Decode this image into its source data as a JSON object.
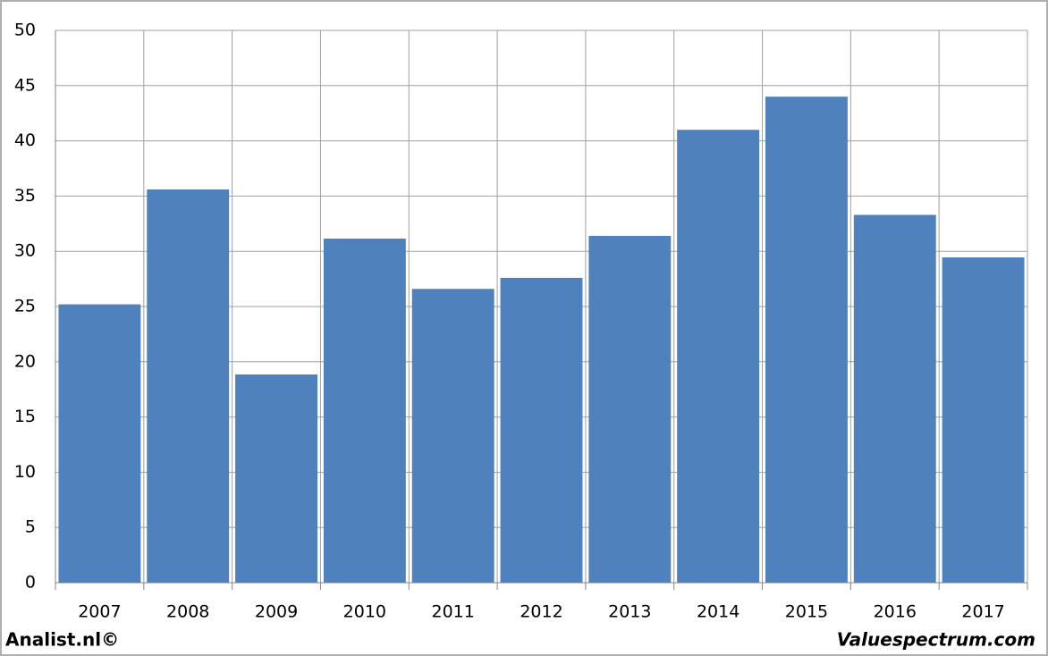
{
  "chart_data": {
    "type": "bar",
    "categories": [
      "2007",
      "2008",
      "2009",
      "2010",
      "2011",
      "2012",
      "2013",
      "2014",
      "2015",
      "2016",
      "2017"
    ],
    "values": [
      25.2,
      35.6,
      18.85,
      31.15,
      26.6,
      27.6,
      31.4,
      41.0,
      44.0,
      33.3,
      29.45
    ],
    "color": "#4f81bd",
    "ylim": [
      0,
      50
    ],
    "yticks": [
      0,
      5,
      10,
      15,
      20,
      25,
      30,
      35,
      40,
      45,
      50
    ],
    "grid": true,
    "source": "Analist.nl©",
    "watermark": "Valuespectrum.com"
  }
}
